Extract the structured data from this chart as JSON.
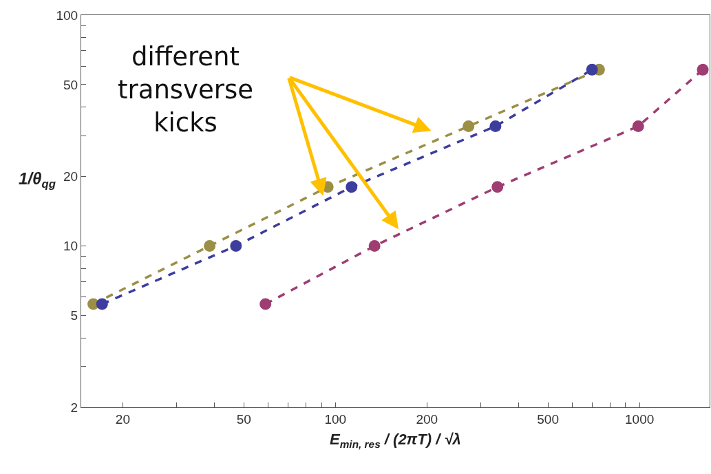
{
  "chart_data": {
    "type": "line",
    "xlabel": "E$_{min, res}$ / (2πT) / √λ",
    "ylabel": "1/θ$_{qg}$",
    "log": "xy",
    "marker": "circle",
    "line_style": "dashed",
    "xlim": [
      14.6,
      1700
    ],
    "ylim": [
      2,
      100
    ],
    "xticks": [
      20,
      {
        "value": 30,
        "label": null
      },
      {
        "value": 40,
        "label": null
      },
      50,
      {
        "value": 60,
        "label": null
      },
      {
        "value": 70,
        "label": null
      },
      {
        "value": 80,
        "label": null
      },
      {
        "value": 90,
        "label": null
      },
      100,
      200,
      {
        "value": 300,
        "label": null
      },
      {
        "value": 400,
        "label": null
      },
      500,
      {
        "value": 600,
        "label": null
      },
      {
        "value": 700,
        "label": null
      },
      {
        "value": 800,
        "label": null
      },
      {
        "value": 900,
        "label": null
      },
      1000
    ],
    "yticks": [
      2,
      {
        "value": 3,
        "label": null
      },
      {
        "value": 4,
        "label": null
      },
      5,
      {
        "value": 6,
        "label": null
      },
      {
        "value": 7,
        "label": null
      },
      {
        "value": 8,
        "label": null
      },
      {
        "value": 9,
        "label": null
      },
      10,
      20,
      {
        "value": 30,
        "label": null
      },
      {
        "value": 40,
        "label": null
      },
      50,
      {
        "value": 60,
        "label": null
      },
      {
        "value": 70,
        "label": null
      },
      {
        "value": 80,
        "label": null
      },
      {
        "value": 90,
        "label": null
      },
      100
    ],
    "annotations": [
      "different\ntransverse\nkicks"
    ],
    "series": [
      {
        "color": "#9a8f45",
        "x": [
          16.0,
          38.6,
          94.4,
          274,
          736
        ],
        "values": [
          5.6,
          10,
          18,
          33,
          58
        ]
      },
      {
        "color": "#3d3d9e",
        "x": [
          17.1,
          47.1,
          113,
          336,
          698
        ],
        "values": [
          5.6,
          10,
          18,
          33,
          58
        ]
      },
      {
        "color": "#9e3d72",
        "x": [
          58.9,
          134.5,
          341,
          990,
          1614
        ],
        "values": [
          5.6,
          10,
          18,
          33,
          58
        ]
      }
    ]
  }
}
